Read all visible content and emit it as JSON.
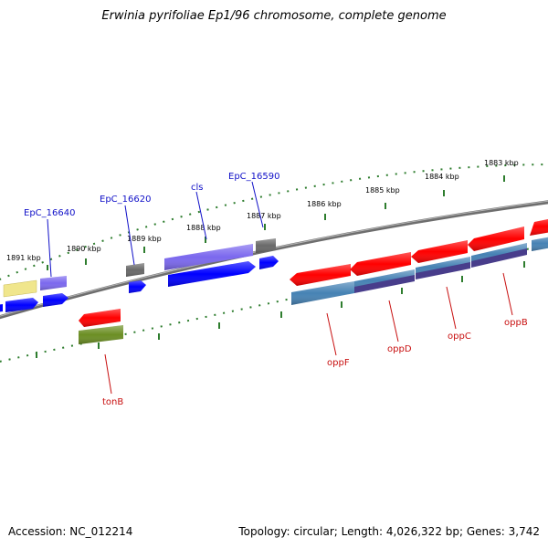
{
  "title": "Erwinia pyrifoliae Ep1/96 chromosome, complete genome",
  "footer": {
    "accession": "Accession: NC_012214",
    "topology": "Topology: circular; Length: 4,026,322 bp; Genes: 3,742"
  },
  "colors": {
    "backbone": "#808080",
    "tick": "#2e7d2e",
    "label_blue": "#1010c8",
    "label_red": "#c81010",
    "gene_red": "#ff0000",
    "gene_blue": "#0000ff",
    "gene_purple": "#7b68ee",
    "gene_steelblue": "#4682b4",
    "gene_darkslate": "#483d8b",
    "gene_gray": "#696969",
    "gene_olive": "#6b8e23",
    "gene_khaki": "#f0e68c"
  },
  "scale_labels": [
    "1891 kbp",
    "1890 kbp",
    "1889 kbp",
    "1888 kbp",
    "1887 kbp",
    "1886 kbp",
    "1885 kbp",
    "1884 kbp",
    "1883 kbp"
  ],
  "gene_labels": {
    "EpC_16640": "EpC_16640",
    "EpC_16620": "EpC_16620",
    "cls": "cls",
    "EpC_16590": "EpC_16590",
    "tonB": "tonB",
    "oppF": "oppF",
    "oppD": "oppD",
    "oppC": "oppC",
    "oppB": "oppB"
  }
}
